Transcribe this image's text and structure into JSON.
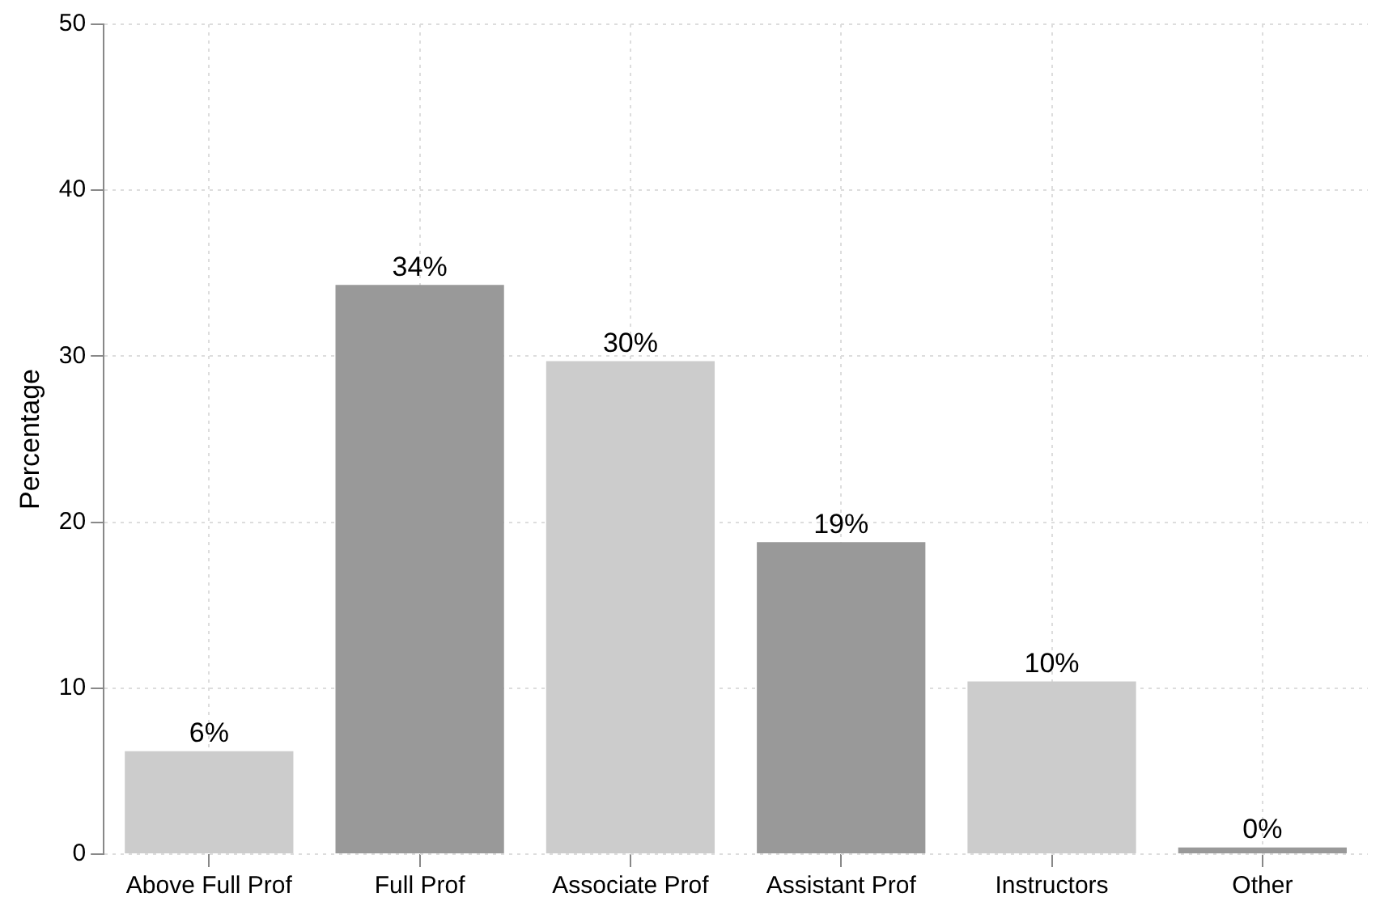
{
  "chart_data": {
    "type": "bar",
    "ylabel": "Percentage",
    "categories": [
      "Above Full Prof",
      "Full Prof",
      "Associate Prof",
      "Assistant Prof",
      "Instructors",
      "Other"
    ],
    "values": [
      6.2,
      34.3,
      29.7,
      18.8,
      10.4,
      0.4
    ],
    "colors": [
      "#cccccc",
      "#999999",
      "#cccccc",
      "#999999",
      "#cccccc",
      "#999999"
    ],
    "value_labels": [
      "6%",
      "34%",
      "30%",
      "19%",
      "10%",
      "0%"
    ],
    "ylim": [
      0,
      50
    ],
    "yticks": [
      0,
      10,
      20,
      30,
      40,
      50
    ],
    "grid": true
  }
}
